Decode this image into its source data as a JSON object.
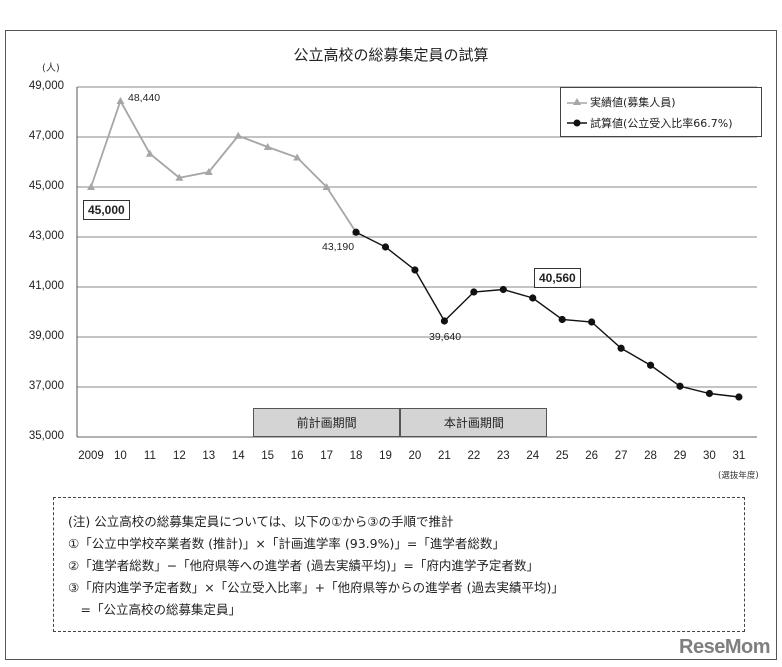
{
  "chart_data": {
    "type": "line",
    "title": "公立高校の総募集定員の試算",
    "ylabel": "(人)",
    "xlabel": "(選抜年度)",
    "ylim": [
      35000,
      49000
    ],
    "yticks": [
      "49,000",
      "47,000",
      "45,000",
      "43,000",
      "41,000",
      "39,000",
      "37,000",
      "35,000"
    ],
    "grid": true,
    "legend_position": "top-right",
    "categories": [
      "2009",
      "10",
      "11",
      "12",
      "13",
      "14",
      "15",
      "16",
      "17",
      "18",
      "19",
      "20",
      "21",
      "22",
      "23",
      "24",
      "25",
      "26",
      "27",
      "28",
      "29",
      "30",
      "31"
    ],
    "series": [
      {
        "name": "実績値(募集人員)",
        "marker": "triangle",
        "color": "#a6a6a6",
        "values": [
          45000,
          48440,
          46330,
          45370,
          45600,
          47050,
          46600,
          46180,
          45000,
          43190,
          null,
          null,
          null,
          null,
          null,
          null,
          null,
          null,
          null,
          null,
          null,
          null,
          null
        ]
      },
      {
        "name": "試算値(公立受入比率66.7%)",
        "marker": "circle",
        "color": "#111111",
        "values": [
          null,
          null,
          null,
          null,
          null,
          null,
          null,
          null,
          null,
          43190,
          42600,
          41680,
          39640,
          40800,
          40900,
          40560,
          39700,
          39600,
          38550,
          37870,
          37030,
          36740,
          36600
        ]
      }
    ],
    "annotations": [
      {
        "text": "45,000",
        "x": "2009",
        "boxed": true
      },
      {
        "text": "48,440",
        "x": "10",
        "boxed": false
      },
      {
        "text": "43,190",
        "x": "18",
        "boxed": false
      },
      {
        "text": "39,640",
        "x": "21",
        "boxed": false
      },
      {
        "text": "40,560",
        "x": "24",
        "boxed": true
      }
    ],
    "periods": [
      {
        "label": "前計画期間",
        "from": "15",
        "to": "19"
      },
      {
        "label": "本計画期間",
        "from": "20",
        "to": "24"
      }
    ]
  },
  "note": {
    "lines": [
      "(注) 公立高校の総募集定員については、以下の①から③の手順で推計",
      "①「公立中学校卒業者数 (推計)」×「計画進学率 (93.9%)」=「進学者総数」",
      "②「進学者総数」−「他府県等への進学者 (過去実績平均)」=「府内進学予定者数」",
      "③「府内進学予定者数」×「公立受入比率」+「他府県等からの進学者 (過去実績平均)」",
      "　=「公立高校の総募集定員」"
    ]
  },
  "watermark": "ReseMom"
}
